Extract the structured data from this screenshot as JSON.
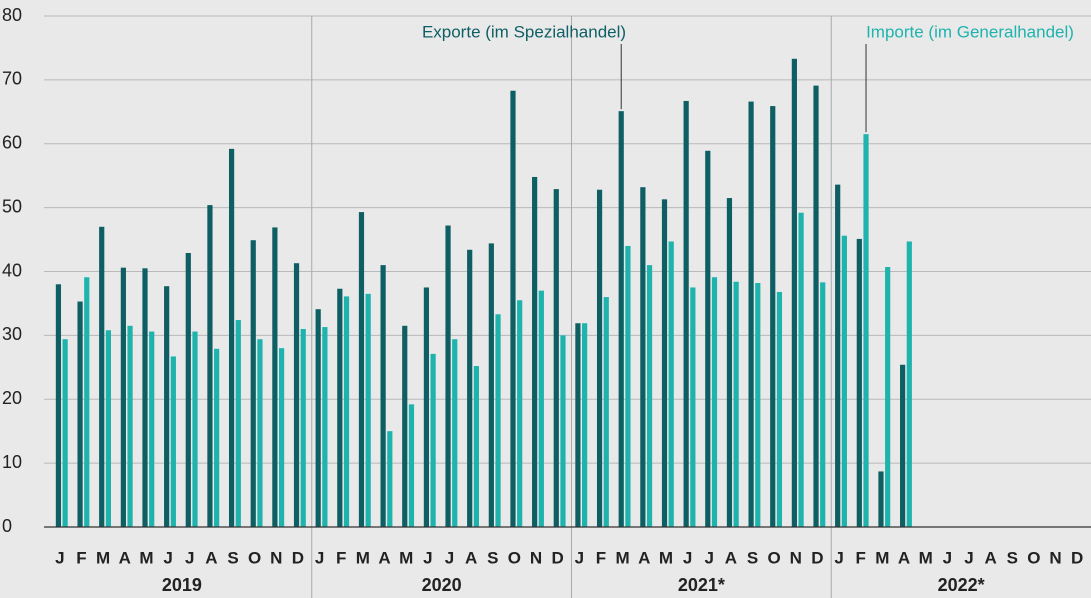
{
  "chart_data": {
    "type": "bar",
    "categories": [
      "J",
      "F",
      "M",
      "A",
      "M",
      "J",
      "J",
      "A",
      "S",
      "O",
      "N",
      "D",
      "J",
      "F",
      "M",
      "A",
      "M",
      "J",
      "J",
      "A",
      "S",
      "O",
      "N",
      "D",
      "J",
      "F",
      "M",
      "A",
      "M",
      "J",
      "J",
      "A",
      "S",
      "O",
      "N",
      "D",
      "J",
      "F",
      "M",
      "A",
      "M",
      "J",
      "J",
      "A",
      "S",
      "O",
      "N",
      "D"
    ],
    "groups": [
      "2019",
      "2020",
      "2021*",
      "2022*"
    ],
    "series": [
      {
        "name": "Exporte (im Spezialhandel)",
        "color": "#0e5f63",
        "values": [
          38,
          35.3,
          47,
          40.6,
          40.5,
          37.7,
          42.9,
          50.4,
          59.2,
          44.9,
          46.9,
          41.3,
          34.1,
          37.3,
          49.3,
          41,
          31.5,
          37.5,
          47.2,
          43.4,
          44.4,
          68.3,
          54.8,
          52.9,
          31.9,
          52.8,
          65.1,
          53.2,
          51.3,
          66.7,
          58.9,
          51.5,
          66.6,
          65.9,
          73.3,
          69.1,
          53.6,
          45.1,
          8.7,
          25.4,
          null,
          null,
          null,
          null,
          null,
          null,
          null,
          null
        ]
      },
      {
        "name": "Importe (im Generalhandel)",
        "color": "#1fb3ad",
        "values": [
          29.4,
          39.1,
          30.8,
          31.5,
          30.6,
          26.7,
          30.6,
          27.9,
          32.4,
          29.4,
          28,
          31,
          31.3,
          36.1,
          36.5,
          15,
          19.2,
          27.1,
          29.4,
          25.2,
          33.3,
          35.5,
          37,
          30,
          31.9,
          36,
          44,
          41,
          44.7,
          37.5,
          39.1,
          38.4,
          38.2,
          36.8,
          49.2,
          38.3,
          45.6,
          61.5,
          40.7,
          44.7,
          null,
          null,
          null,
          null,
          null,
          null,
          null,
          null
        ]
      }
    ],
    "ylim": [
      0,
      80
    ],
    "yticks": [
      0,
      10,
      20,
      30,
      40,
      50,
      60,
      70,
      80
    ],
    "grid": true
  }
}
